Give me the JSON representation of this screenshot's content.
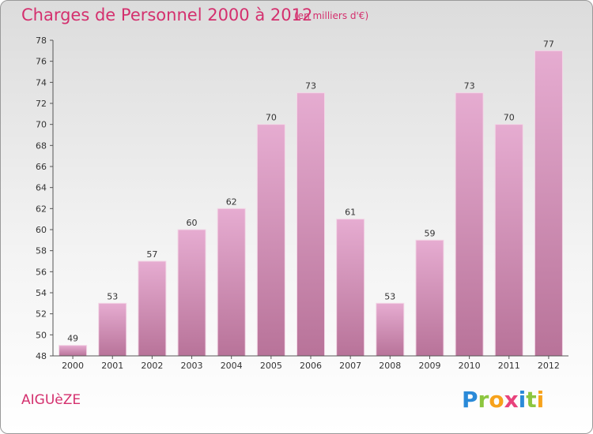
{
  "header": {
    "title": "Charges de Personnel 2000 à 2012",
    "subtitle": "(en milliers d'€)"
  },
  "footer": {
    "town": "AIGUèZE",
    "logo": {
      "letters": [
        "P",
        "r",
        "o",
        "x",
        "i",
        "t",
        "i"
      ],
      "colors": [
        "#2a8ad8",
        "#8cc63f",
        "#f7a21b",
        "#e8427c",
        "#2a8ad8",
        "#8cc63f",
        "#f7a21b"
      ]
    }
  },
  "colors": {
    "bar_light": "#e6acd1",
    "bar_dark": "#b87399",
    "axis": "#555555",
    "grid": "#cccccc"
  },
  "chart_data": {
    "type": "bar",
    "categories": [
      "2000",
      "2001",
      "2002",
      "2003",
      "2004",
      "2005",
      "2006",
      "2007",
      "2008",
      "2009",
      "2010",
      "2011",
      "2012"
    ],
    "values": [
      49,
      53,
      57,
      60,
      62,
      70,
      73,
      61,
      53,
      59,
      73,
      70,
      77
    ],
    "title": "Charges de Personnel 2000 à 2012",
    "subtitle": "(en milliers d'€)",
    "xlabel": "",
    "ylabel": "",
    "ylim": [
      48,
      78
    ],
    "yticks": [
      48,
      50,
      52,
      54,
      56,
      58,
      60,
      62,
      64,
      66,
      68,
      70,
      72,
      74,
      76,
      78
    ],
    "grid": false,
    "data_labels": true
  }
}
